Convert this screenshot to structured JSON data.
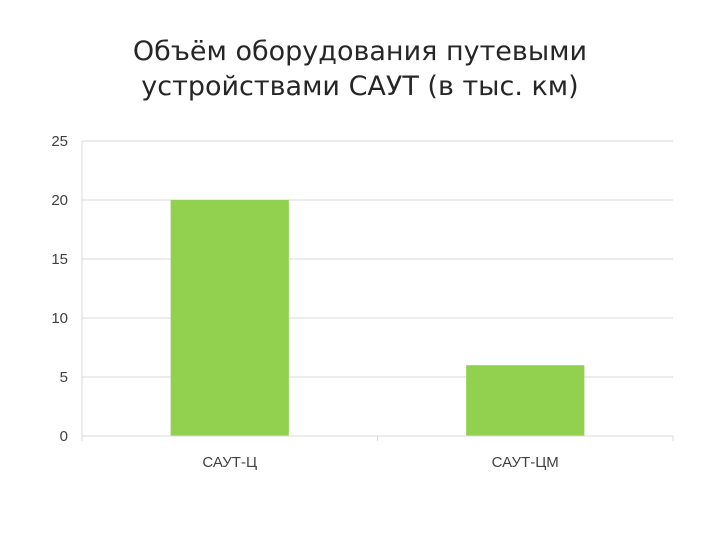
{
  "chart_data": {
    "type": "bar",
    "title_lines": [
      "Объём оборудования путевыми",
      "устройствами САУТ (в тыс. км)"
    ],
    "categories": [
      "САУТ-Ц",
      "САУТ-ЦМ"
    ],
    "values": [
      20,
      6
    ],
    "yticks": [
      "0",
      "5",
      "10",
      "15",
      "20",
      "25"
    ],
    "ylim": [
      0,
      25
    ],
    "grid": true,
    "legend": "none",
    "bar_color": "#92d050",
    "grid_color": "#d9d9d9"
  }
}
